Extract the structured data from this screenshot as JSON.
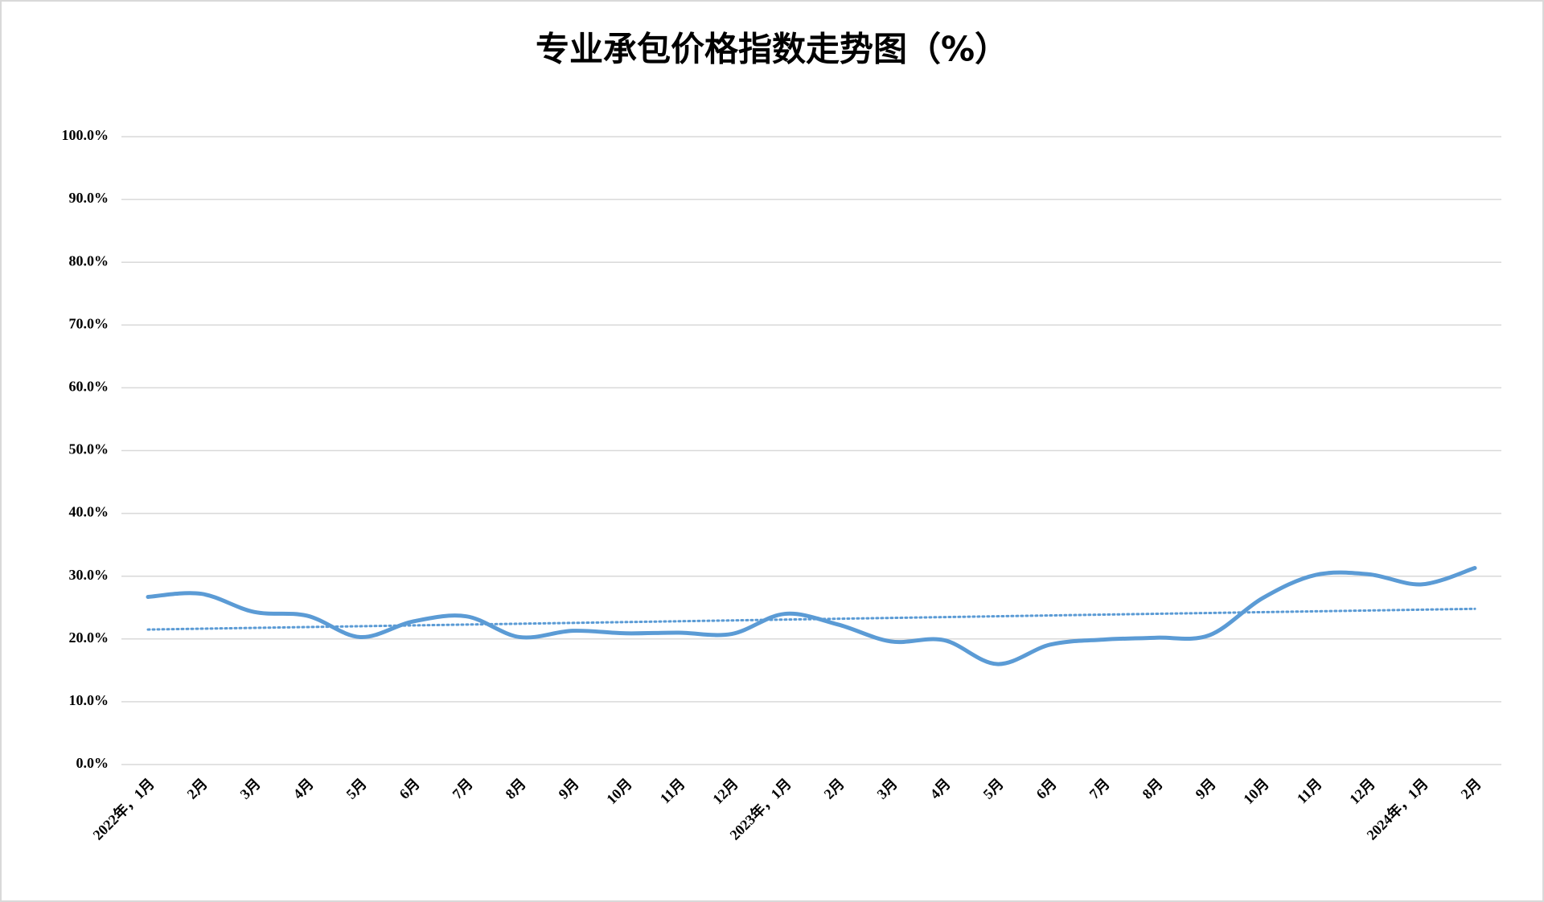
{
  "chart_data": {
    "type": "line",
    "title": "专业承包价格指数走势图（%）",
    "categories": [
      "2022年，1月",
      "2月",
      "3月",
      "4月",
      "5月",
      "6月",
      "7月",
      "8月",
      "9月",
      "10月",
      "11月",
      "12月",
      "2023年，1月",
      "2月",
      "3月",
      "4月",
      "5月",
      "6月",
      "7月",
      "8月",
      "9月",
      "10月",
      "11月",
      "12月",
      "2024年，1月",
      "2月"
    ],
    "series": [
      {
        "color": "#5b9bd5",
        "values": [
          26.7,
          27.2,
          24.3,
          23.7,
          20.3,
          22.8,
          23.6,
          20.3,
          21.3,
          20.9,
          21.0,
          20.8,
          24.0,
          22.3,
          19.6,
          19.8,
          16.0,
          19.1,
          19.9,
          20.2,
          20.6,
          26.5,
          30.2,
          30.3,
          28.7,
          31.3
        ]
      }
    ],
    "trendline": {
      "start": 21.5,
      "end": 24.8,
      "color": "#5b9bd5",
      "style": "dotted"
    },
    "ylim": [
      0,
      100
    ],
    "yticks": [
      {
        "value": 0,
        "label": "0.0%"
      },
      {
        "value": 10,
        "label": "10.0%"
      },
      {
        "value": 20,
        "label": "20.0%"
      },
      {
        "value": 30,
        "label": "30.0%"
      },
      {
        "value": 40,
        "label": "40.0%"
      },
      {
        "value": 50,
        "label": "50.0%"
      },
      {
        "value": 60,
        "label": "60.0%"
      },
      {
        "value": 70,
        "label": "70.0%"
      },
      {
        "value": 80,
        "label": "80.0%"
      },
      {
        "value": 90,
        "label": "90.0%"
      },
      {
        "value": 100,
        "label": "100.0%"
      }
    ],
    "grid": true,
    "smooth": true
  }
}
